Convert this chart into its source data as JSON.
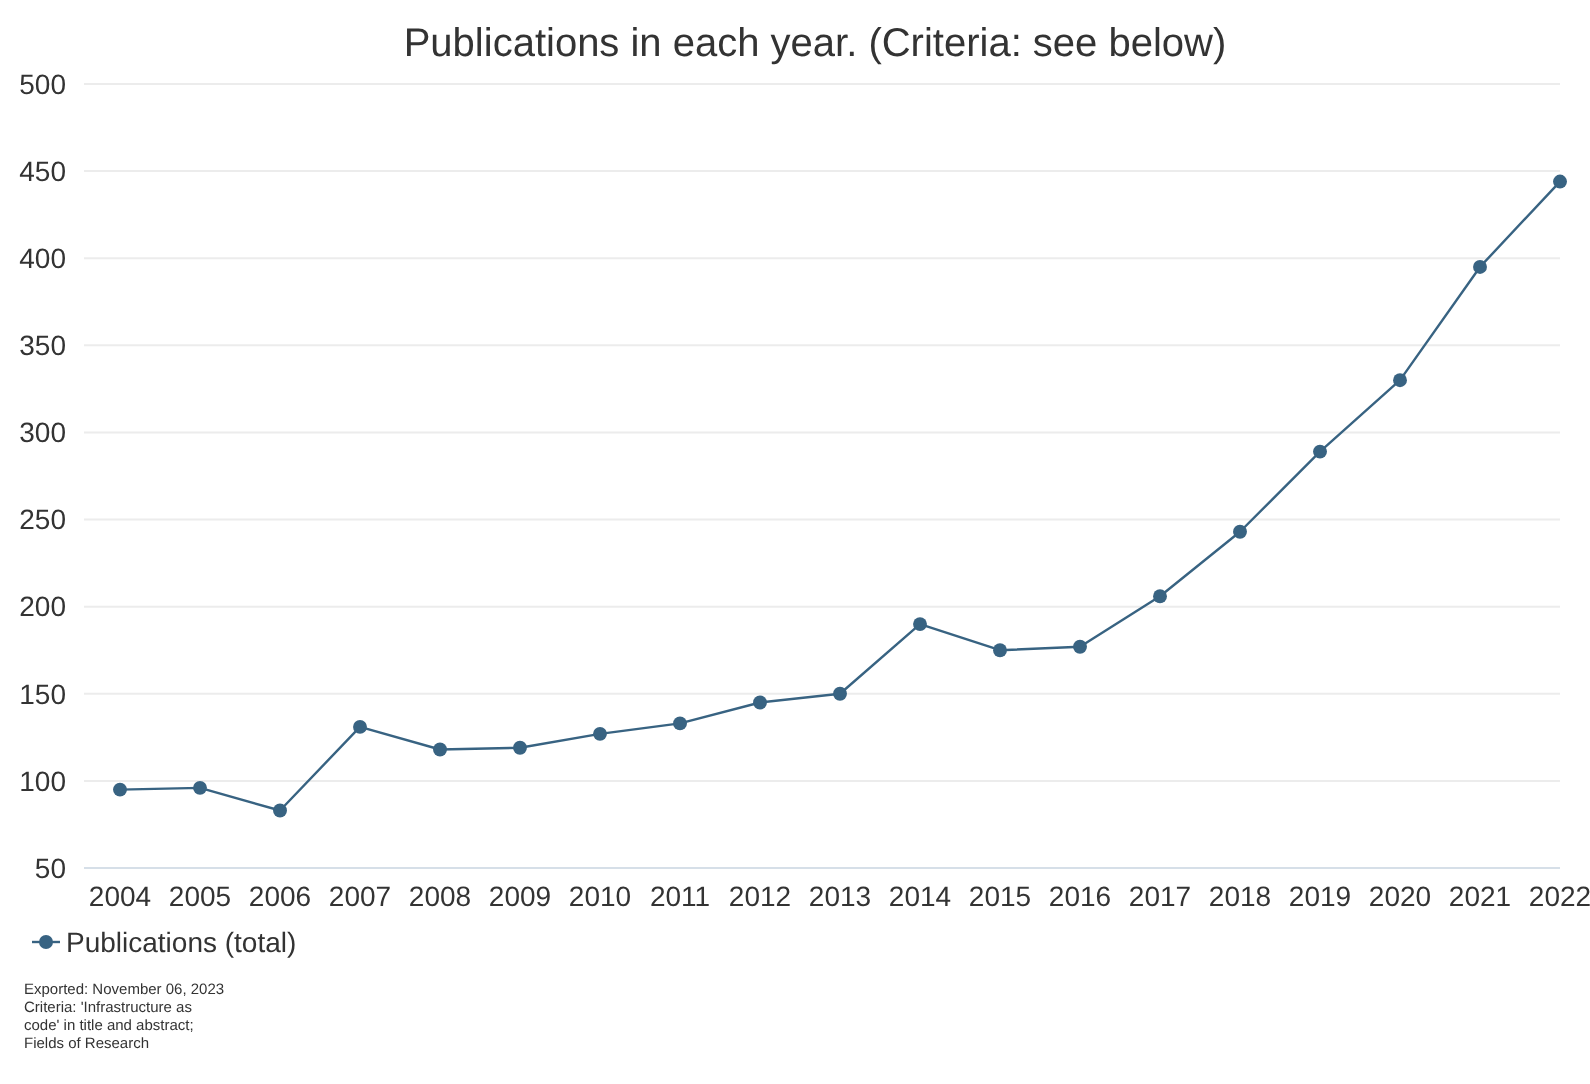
{
  "chart_data": {
    "type": "line",
    "title": "Publications in each year. (Criteria: see below)",
    "categories": [
      "2004",
      "2005",
      "2006",
      "2007",
      "2008",
      "2009",
      "2010",
      "2011",
      "2012",
      "2013",
      "2014",
      "2015",
      "2016",
      "2017",
      "2018",
      "2019",
      "2020",
      "2021",
      "2022"
    ],
    "series": [
      {
        "name": "Publications (total)",
        "color": "#386382",
        "values": [
          95,
          96,
          83,
          131,
          118,
          119,
          127,
          133,
          145,
          150,
          190,
          175,
          177,
          206,
          243,
          289,
          330,
          395,
          444
        ]
      }
    ],
    "ylim": [
      50,
      500
    ],
    "yticks": [
      50,
      100,
      150,
      200,
      250,
      300,
      350,
      400,
      450,
      500
    ],
    "grid": "y",
    "legend": "bottom left",
    "marker": "circle",
    "line_style": "solid",
    "annotations": [
      "Exported: November 06, 2023",
      "Criteria: 'Infrastructure as code' in title and abstract; Fields of Research"
    ]
  }
}
